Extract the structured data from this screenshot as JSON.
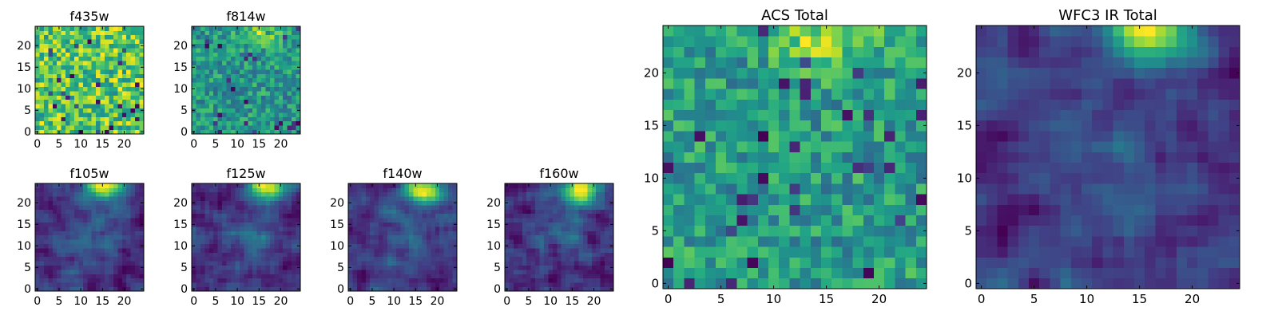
{
  "figure": {
    "background": "#ffffff",
    "colormap": "viridis"
  },
  "chart_data": [
    {
      "type": "heatmap",
      "title": "f435w",
      "xticks": [
        "0",
        "5",
        "10",
        "15",
        "20"
      ],
      "yticks": [
        "0",
        "5",
        "10",
        "15",
        "20"
      ],
      "xlim": [
        -0.5,
        24.5
      ],
      "ylim": [
        -0.5,
        24.5
      ],
      "grid_size": [
        25,
        25
      ],
      "pattern": "noise",
      "hotspot": null
    },
    {
      "type": "heatmap",
      "title": "f814w",
      "xticks": [
        "0",
        "5",
        "10",
        "15",
        "20"
      ],
      "yticks": [
        "0",
        "5",
        "10",
        "15",
        "20"
      ],
      "xlim": [
        -0.5,
        24.5
      ],
      "ylim": [
        -0.5,
        24.5
      ],
      "grid_size": [
        25,
        25
      ],
      "pattern": "noise-top",
      "hotspot": [
        15,
        23
      ]
    },
    {
      "type": "heatmap",
      "title": "f105w",
      "xticks": [
        "0",
        "5",
        "10",
        "15",
        "20"
      ],
      "yticks": [
        "0",
        "5",
        "10",
        "15",
        "20"
      ],
      "xlim": [
        -0.5,
        24.5
      ],
      "ylim": [
        -0.5,
        24.5
      ],
      "grid_size": [
        25,
        25
      ],
      "pattern": "smooth-top",
      "hotspot": [
        16,
        24
      ]
    },
    {
      "type": "heatmap",
      "title": "f125w",
      "xticks": [
        "0",
        "5",
        "10",
        "15",
        "20"
      ],
      "yticks": [
        "0",
        "5",
        "10",
        "15",
        "20"
      ],
      "xlim": [
        -0.5,
        24.5
      ],
      "ylim": [
        -0.5,
        24.5
      ],
      "grid_size": [
        25,
        25
      ],
      "pattern": "smooth-top",
      "hotspot": [
        17,
        24
      ]
    },
    {
      "type": "heatmap",
      "title": "f140w",
      "xticks": [
        "0",
        "5",
        "10",
        "15",
        "20"
      ],
      "yticks": [
        "0",
        "5",
        "10",
        "15",
        "20"
      ],
      "xlim": [
        -0.5,
        24.5
      ],
      "ylim": [
        -0.5,
        24.5
      ],
      "grid_size": [
        25,
        25
      ],
      "pattern": "smooth-top",
      "hotspot": [
        17,
        23
      ]
    },
    {
      "type": "heatmap",
      "title": "f160w",
      "xticks": [
        "0",
        "5",
        "10",
        "15",
        "20"
      ],
      "yticks": [
        "0",
        "5",
        "10",
        "15",
        "20"
      ],
      "xlim": [
        -0.5,
        24.5
      ],
      "ylim": [
        -0.5,
        24.5
      ],
      "grid_size": [
        25,
        25
      ],
      "pattern": "smooth-top",
      "hotspot": [
        17,
        23
      ]
    },
    {
      "type": "heatmap",
      "title": "ACS Total",
      "xticks": [
        "0",
        "5",
        "10",
        "15",
        "20"
      ],
      "yticks": [
        "0",
        "5",
        "10",
        "15",
        "20"
      ],
      "xlim": [
        -0.5,
        24.5
      ],
      "ylim": [
        -0.5,
        24.5
      ],
      "grid_size": [
        25,
        25
      ],
      "pattern": "noise-top",
      "hotspot": [
        15,
        23
      ]
    },
    {
      "type": "heatmap",
      "title": "WFC3 IR Total",
      "xticks": [
        "0",
        "5",
        "10",
        "15",
        "20"
      ],
      "yticks": [
        "0",
        "5",
        "10",
        "15",
        "20"
      ],
      "xlim": [
        -0.5,
        24.5
      ],
      "ylim": [
        -0.5,
        24.5
      ],
      "grid_size": [
        25,
        25
      ],
      "pattern": "smooth-top",
      "hotspot": [
        16,
        24
      ]
    }
  ]
}
